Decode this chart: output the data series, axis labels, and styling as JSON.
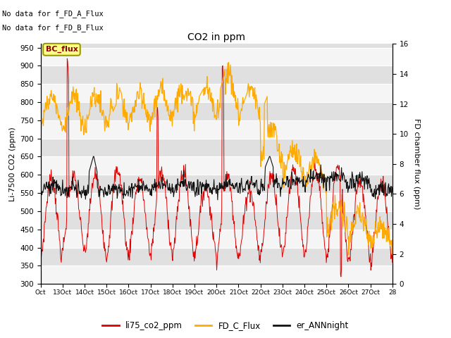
{
  "title": "CO2 in ppm",
  "ylabel_left": "Li-7500 CO2 (ppm)",
  "ylabel_right": "FD chamber flux (ppm)",
  "text_top_left": [
    "No data for f_FD_A_Flux",
    "No data for f_FD_B_Flux"
  ],
  "bc_flux_label": "BC_flux",
  "legend_entries": [
    "li75_co2_ppm",
    "FD_C_Flux",
    "er_ANNnight"
  ],
  "line_colors": [
    "#dd0000",
    "#ffaa00",
    "#111111"
  ],
  "ylim_left": [
    300,
    960
  ],
  "ylim_right": [
    0,
    16
  ],
  "yticks_left": [
    300,
    350,
    400,
    450,
    500,
    550,
    600,
    650,
    700,
    750,
    800,
    850,
    900,
    950
  ],
  "yticks_right": [
    0,
    2,
    4,
    6,
    8,
    10,
    12,
    14,
    16
  ],
  "xtick_labels": [
    "Oct",
    "13Oct",
    "14Oct",
    "15Oct",
    "16Oct",
    "17Oct",
    "18Oct",
    "19Oct",
    "20Oct",
    "21Oct",
    "22Oct",
    "23Oct",
    "24Oct",
    "25Oct",
    "26Oct",
    "27Oct",
    "28"
  ],
  "n_days": 16,
  "background_color": "#ffffff",
  "plot_bg_color": "#e0e0e0",
  "stripe_color1": "#e0e0e0",
  "stripe_color2": "#f5f5f5",
  "grid_color": "#ffffff",
  "figsize": [
    6.4,
    4.8
  ],
  "dpi": 100
}
